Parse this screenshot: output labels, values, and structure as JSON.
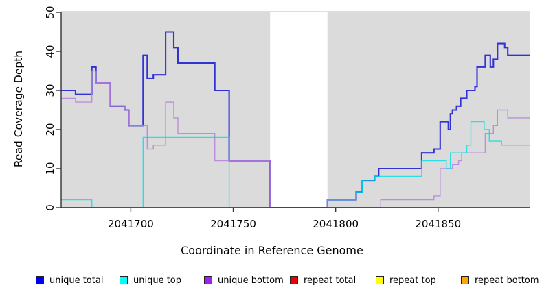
{
  "chart_data": {
    "type": "line",
    "subtype": "step-coverage-plot",
    "title": "",
    "xlabel": "Coordinate in Reference Genome",
    "ylabel": "Read Coverage Depth",
    "xlim": [
      2041666,
      2041895
    ],
    "ylim": [
      0,
      50
    ],
    "xticks": [
      2041700,
      2041750,
      2041800,
      2041850
    ],
    "yticks": [
      0,
      10,
      20,
      30,
      40,
      50
    ],
    "grid": "off",
    "legend_position": "bottom",
    "background": {
      "plot_bg": "#ffffff",
      "shaded_color": "#dbdbdb",
      "shaded_regions": [
        {
          "x0": 2041666,
          "x1": 2041768
        },
        {
          "x0": 2041796,
          "x1": 2041895
        }
      ],
      "gap_region": {
        "x0": 2041768,
        "x1": 2041796
      }
    },
    "series": [
      {
        "name": "unique total",
        "slug": "unique-total",
        "swatch_color": "#0000ee",
        "line_color": "#2424d6",
        "line_width": 2.1,
        "opacity": 0.92,
        "points": [
          [
            2041666,
            30
          ],
          [
            2041673,
            29
          ],
          [
            2041681,
            36
          ],
          [
            2041683,
            32
          ],
          [
            2041690,
            26
          ],
          [
            2041697,
            25
          ],
          [
            2041699,
            21
          ],
          [
            2041706,
            39
          ],
          [
            2041708,
            33
          ],
          [
            2041711,
            34
          ],
          [
            2041717,
            45
          ],
          [
            2041721,
            41
          ],
          [
            2041723,
            37
          ],
          [
            2041741,
            30
          ],
          [
            2041748,
            12
          ],
          [
            2041768,
            0
          ],
          [
            2041796,
            2
          ],
          [
            2041810,
            4
          ],
          [
            2041813,
            7
          ],
          [
            2041819,
            8
          ],
          [
            2041821,
            10
          ],
          [
            2041842,
            14
          ],
          [
            2041848,
            15
          ],
          [
            2041851,
            22
          ],
          [
            2041855,
            20
          ],
          [
            2041856,
            24
          ],
          [
            2041857,
            25
          ],
          [
            2041859,
            26
          ],
          [
            2041861,
            28
          ],
          [
            2041864,
            30
          ],
          [
            2041868,
            31
          ],
          [
            2041869,
            36
          ],
          [
            2041873,
            39
          ],
          [
            2041875.5,
            36
          ],
          [
            2041877,
            38
          ],
          [
            2041879,
            42
          ],
          [
            2041882.5,
            41
          ],
          [
            2041884,
            39
          ]
        ]
      },
      {
        "name": "unique top",
        "slug": "unique-top",
        "swatch_color": "#00ffff",
        "line_color": "#00dde8",
        "line_width": 1.4,
        "opacity": 0.8,
        "points": [
          [
            2041666,
            2
          ],
          [
            2041681,
            0
          ],
          [
            2041706,
            18
          ],
          [
            2041748,
            0
          ],
          [
            2041796,
            2
          ],
          [
            2041810,
            4
          ],
          [
            2041813,
            7
          ],
          [
            2041819,
            8
          ],
          [
            2041842,
            12
          ],
          [
            2041854,
            10
          ],
          [
            2041856,
            14
          ],
          [
            2041864,
            16
          ],
          [
            2041866,
            22
          ],
          [
            2041872.5,
            20
          ],
          [
            2041875,
            17
          ],
          [
            2041881,
            16
          ]
        ]
      },
      {
        "name": "unique bottom",
        "slug": "unique-bottom",
        "swatch_color": "#a020f0",
        "line_color": "#b77fdc",
        "line_width": 1.4,
        "opacity": 0.85,
        "points": [
          [
            2041666,
            28
          ],
          [
            2041673,
            27
          ],
          [
            2041681,
            35
          ],
          [
            2041683,
            32
          ],
          [
            2041690,
            26
          ],
          [
            2041697,
            25
          ],
          [
            2041699,
            21
          ],
          [
            2041708,
            15
          ],
          [
            2041711,
            16
          ],
          [
            2041717,
            27
          ],
          [
            2041721,
            23
          ],
          [
            2041723,
            19
          ],
          [
            2041741,
            12
          ],
          [
            2041768,
            0
          ],
          [
            2041822,
            2
          ],
          [
            2041848,
            3
          ],
          [
            2041851,
            10
          ],
          [
            2041857,
            11
          ],
          [
            2041860,
            12
          ],
          [
            2041861.5,
            14
          ],
          [
            2041873,
            19
          ],
          [
            2041877,
            21
          ],
          [
            2041879,
            25
          ],
          [
            2041884,
            23
          ]
        ]
      },
      {
        "name": "repeat total",
        "slug": "repeat-total",
        "swatch_color": "#ee0000",
        "line_color": "#e04050",
        "line_width": 1.6,
        "opacity": 1,
        "points": [
          [
            2041666,
            0
          ]
        ]
      },
      {
        "name": "repeat top",
        "slug": "repeat-top",
        "swatch_color": "#ffff00",
        "line_color": "#f5e400",
        "line_width": 1.4,
        "opacity": 1,
        "points": [
          [
            2041666,
            0
          ]
        ]
      },
      {
        "name": "repeat bottom",
        "slug": "repeat-bottom",
        "swatch_color": "#ffa500",
        "line_color": "#ff9f1a",
        "line_width": 1.6,
        "opacity": 1,
        "points": [
          [
            2041666,
            0
          ]
        ]
      }
    ],
    "draw_order": [
      "repeat-total",
      "repeat-top",
      "repeat-bottom",
      "unique-total",
      "unique-bottom",
      "unique-top"
    ],
    "axis_color": "#333333",
    "top_border_color": "#c9c9c9",
    "tick_label_color": "#000000"
  }
}
